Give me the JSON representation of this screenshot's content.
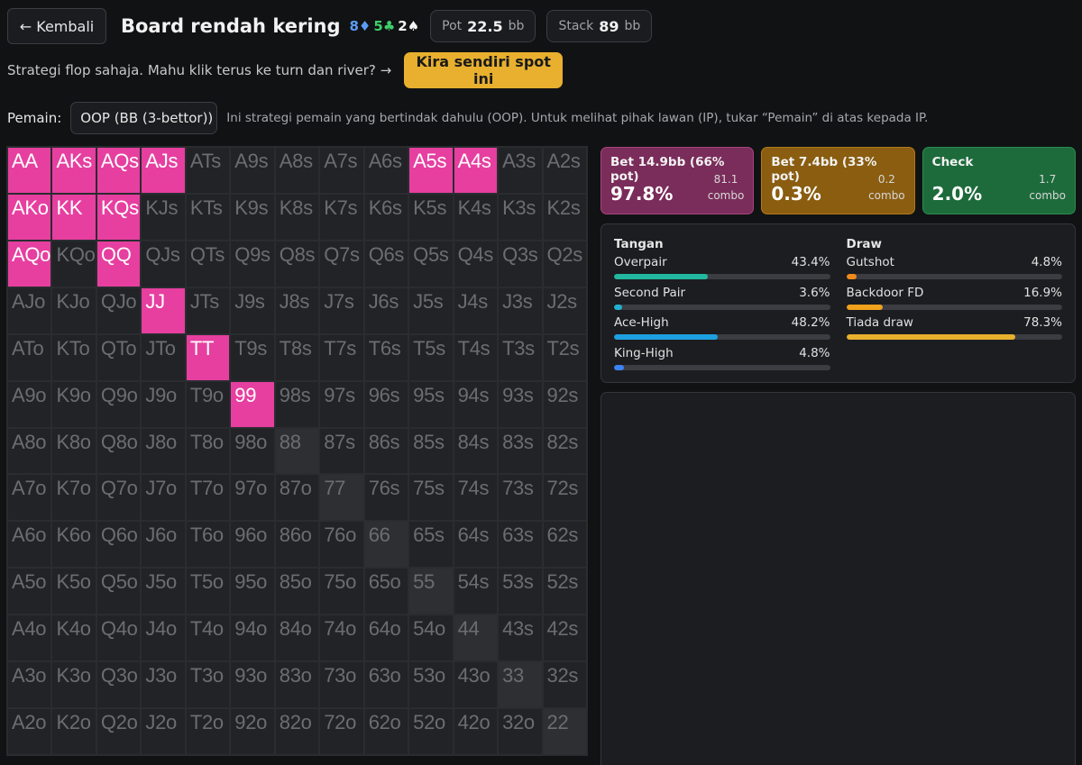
{
  "header": {
    "back_label": "← Kembali",
    "title": "Board rendah kering",
    "board_cards": [
      {
        "text": "8♦",
        "color": "#5b9cf4"
      },
      {
        "text": "5♣",
        "color": "#3fcf6a"
      },
      {
        "text": "2♠",
        "color": "#f2f2f2"
      }
    ],
    "pot_label": "Pot",
    "pot_value": "22.5",
    "pot_unit": "bb",
    "stack_label": "Stack",
    "stack_value": "89",
    "stack_unit": "bb"
  },
  "prompt": {
    "text": "Strategi flop sahaja. Mahu klik terus ke turn dan river? →",
    "button_label": "Kira sendiri spot ini"
  },
  "player": {
    "label": "Pemain:",
    "selected": "OOP (BB (3-bettor))",
    "hint": "Ini strategi pemain yang bertindak dahulu (OOP). Untuk melihat pihak lawan (IP), tukar “Pemain” di atas kepada IP."
  },
  "matrix": {
    "ranks": [
      "A",
      "K",
      "Q",
      "J",
      "T",
      "9",
      "8",
      "7",
      "6",
      "5",
      "4",
      "3",
      "2"
    ],
    "bet_hands": [
      "AA",
      "AKs",
      "AQs",
      "AJs",
      "A5s",
      "A4s",
      "AKo",
      "KK",
      "KQs",
      "AQo",
      "QQ",
      "JJ",
      "TT",
      "99"
    ],
    "bet_color": "#e63fa0"
  },
  "actions": [
    {
      "name": "Bet 14.9bb (66% pot)",
      "pct": "97.8%",
      "combo_value": "81.1",
      "combo_label": "combo",
      "color": "#7a2c5a"
    },
    {
      "name": "Bet 7.4bb (33% pot)",
      "pct": "0.3%",
      "combo_value": "0.2",
      "combo_label": "combo",
      "color": "#8a5d10"
    },
    {
      "name": "Check",
      "pct": "2.0%",
      "combo_value": "1.7",
      "combo_label": "combo",
      "color": "#1d6b3b"
    }
  ],
  "stats": {
    "hands_title": "Tangan",
    "hands": [
      {
        "name": "Overpair",
        "pct": "43.4%",
        "value": 43.4,
        "color": "#22b8a0"
      },
      {
        "name": "Second Pair",
        "pct": "3.6%",
        "value": 3.6,
        "color": "#22b0d0"
      },
      {
        "name": "Ace-High",
        "pct": "48.2%",
        "value": 48.2,
        "color": "#1ea0e0"
      },
      {
        "name": "King-High",
        "pct": "4.8%",
        "value": 4.8,
        "color": "#3b82f6"
      }
    ],
    "draws_title": "Draw",
    "draws": [
      {
        "name": "Gutshot",
        "pct": "4.8%",
        "value": 4.8,
        "color": "#f08a1c"
      },
      {
        "name": "Backdoor FD",
        "pct": "16.9%",
        "value": 16.9,
        "color": "#f0a21c"
      },
      {
        "name": "Tiada draw",
        "pct": "78.3%",
        "value": 78.3,
        "color": "#e8b02e"
      }
    ]
  }
}
